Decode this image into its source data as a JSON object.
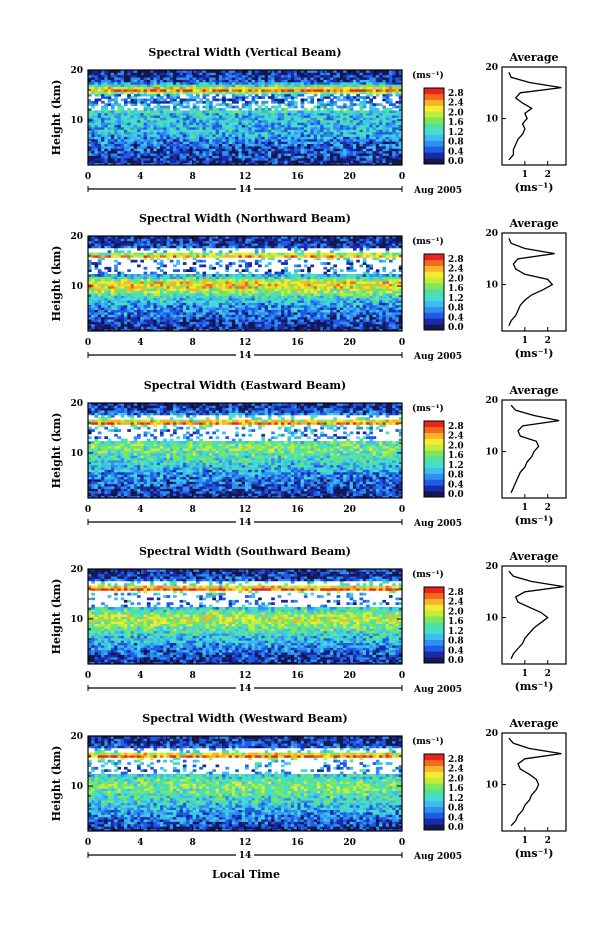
{
  "figure": {
    "xlabel": "Local Time",
    "date_label": "Aug 2005",
    "date_day": "14",
    "ylabel": "Height (km)",
    "cbar_units": "(ms⁻¹)",
    "avg_title": "Average",
    "avg_xlabel": "(ms⁻¹)"
  },
  "chart_data": [
    {
      "type": "heatmap",
      "title": "Spectral Width (Vertical Beam)",
      "xlabel": "Local Time",
      "ylabel": "Height (km)",
      "x_ticks": [
        "0",
        "4",
        "8",
        "12",
        "16",
        "20",
        "0"
      ],
      "y_ticks": [
        "10",
        "20"
      ],
      "xlim": [
        0,
        24
      ],
      "ylim": [
        1,
        20
      ],
      "colorbar": {
        "units": "(ms⁻¹)",
        "ticks": [
          "2.8",
          "2.4",
          "2.0",
          "1.6",
          "1.2",
          "0.8",
          "0.4",
          "0.0"
        ]
      },
      "average_profile": {
        "title": "Average",
        "xlabel": "(ms⁻¹)",
        "x_ticks": [
          "1",
          "2"
        ],
        "y_ticks": [
          "10",
          "20"
        ],
        "xlim": [
          0,
          2.8
        ],
        "heights": [
          2,
          3,
          4,
          5,
          6,
          7,
          8,
          9,
          10,
          11,
          12,
          13,
          14,
          15,
          16,
          17,
          18,
          19
        ],
        "values": [
          0.3,
          0.5,
          0.5,
          0.6,
          0.7,
          0.9,
          1.0,
          0.9,
          1.1,
          1.0,
          1.3,
          0.9,
          0.6,
          0.8,
          2.6,
          1.2,
          0.4,
          0.3
        ]
      }
    },
    {
      "type": "heatmap",
      "title": "Spectral Width (Northward Beam)",
      "xlabel": "Local Time",
      "ylabel": "Height (km)",
      "x_ticks": [
        "0",
        "4",
        "8",
        "12",
        "16",
        "20",
        "0"
      ],
      "y_ticks": [
        "10",
        "20"
      ],
      "xlim": [
        0,
        24
      ],
      "ylim": [
        1,
        20
      ],
      "colorbar": {
        "units": "(ms⁻¹)",
        "ticks": [
          "2.8",
          "2.4",
          "2.0",
          "1.6",
          "1.2",
          "0.8",
          "0.4",
          "0.0"
        ]
      },
      "average_profile": {
        "title": "Average",
        "xlabel": "(ms⁻¹)",
        "x_ticks": [
          "1",
          "2"
        ],
        "y_ticks": [
          "10",
          "20"
        ],
        "xlim": [
          0,
          2.8
        ],
        "heights": [
          2,
          3,
          4,
          5,
          6,
          7,
          8,
          9,
          10,
          11,
          12,
          13,
          14,
          15,
          16,
          17,
          18,
          19
        ],
        "values": [
          0.3,
          0.4,
          0.6,
          0.7,
          0.8,
          1.0,
          1.3,
          1.8,
          2.2,
          2.0,
          1.0,
          0.6,
          0.5,
          0.7,
          2.3,
          1.0,
          0.4,
          0.3
        ]
      }
    },
    {
      "type": "heatmap",
      "title": "Spectral Width (Eastward Beam)",
      "xlabel": "Local Time",
      "ylabel": "Height (km)",
      "x_ticks": [
        "0",
        "4",
        "8",
        "12",
        "16",
        "20",
        "0"
      ],
      "y_ticks": [
        "10",
        "20"
      ],
      "xlim": [
        0,
        24
      ],
      "ylim": [
        1,
        20
      ],
      "colorbar": {
        "units": "(ms⁻¹)",
        "ticks": [
          "2.8",
          "2.4",
          "2.0",
          "1.6",
          "1.2",
          "0.8",
          "0.4",
          "0.0"
        ]
      },
      "average_profile": {
        "title": "Average",
        "xlabel": "(ms⁻¹)",
        "x_ticks": [
          "1",
          "2"
        ],
        "y_ticks": [
          "10",
          "20"
        ],
        "xlim": [
          0,
          2.8
        ],
        "heights": [
          2,
          3,
          4,
          5,
          6,
          7,
          8,
          9,
          10,
          11,
          12,
          13,
          14,
          15,
          16,
          17,
          18,
          19
        ],
        "values": [
          0.4,
          0.5,
          0.6,
          0.7,
          0.8,
          1.0,
          1.1,
          1.3,
          1.4,
          1.6,
          1.5,
          0.8,
          0.7,
          0.9,
          2.5,
          1.4,
          0.6,
          0.4
        ]
      }
    },
    {
      "type": "heatmap",
      "title": "Spectral Width (Southward Beam)",
      "xlabel": "Local Time",
      "ylabel": "Height (km)",
      "x_ticks": [
        "0",
        "4",
        "8",
        "12",
        "16",
        "20",
        "0"
      ],
      "y_ticks": [
        "10",
        "20"
      ],
      "xlim": [
        0,
        24
      ],
      "ylim": [
        1,
        20
      ],
      "colorbar": {
        "units": "(ms⁻¹)",
        "ticks": [
          "2.8",
          "2.4",
          "2.0",
          "1.6",
          "1.2",
          "0.8",
          "0.4",
          "0.0"
        ]
      },
      "average_profile": {
        "title": "Average",
        "xlabel": "(ms⁻¹)",
        "x_ticks": [
          "1",
          "2"
        ],
        "y_ticks": [
          "10",
          "20"
        ],
        "xlim": [
          0,
          2.8
        ],
        "heights": [
          2,
          3,
          4,
          5,
          6,
          7,
          8,
          9,
          10,
          11,
          12,
          13,
          14,
          15,
          16,
          17,
          18,
          19
        ],
        "values": [
          0.4,
          0.5,
          0.7,
          0.9,
          1.0,
          1.2,
          1.4,
          1.7,
          2.0,
          1.7,
          1.2,
          0.7,
          0.6,
          1.0,
          2.7,
          1.3,
          0.5,
          0.3
        ]
      }
    },
    {
      "type": "heatmap",
      "title": "Spectral Width (Westward Beam)",
      "xlabel": "Local Time",
      "ylabel": "Height (km)",
      "x_ticks": [
        "0",
        "4",
        "8",
        "12",
        "16",
        "20",
        "0"
      ],
      "y_ticks": [
        "10",
        "20"
      ],
      "xlim": [
        0,
        24
      ],
      "ylim": [
        1,
        20
      ],
      "colorbar": {
        "units": "(ms⁻¹)",
        "ticks": [
          "2.8",
          "2.4",
          "2.0",
          "1.6",
          "1.2",
          "0.8",
          "0.4",
          "0.0"
        ]
      },
      "average_profile": {
        "title": "Average",
        "xlabel": "(ms⁻¹)",
        "x_ticks": [
          "1",
          "2"
        ],
        "y_ticks": [
          "10",
          "20"
        ],
        "xlim": [
          0,
          2.8
        ],
        "heights": [
          2,
          3,
          4,
          5,
          6,
          7,
          8,
          9,
          10,
          11,
          12,
          13,
          14,
          15,
          16,
          17,
          18,
          19
        ],
        "values": [
          0.4,
          0.6,
          0.7,
          0.9,
          1.0,
          1.2,
          1.3,
          1.5,
          1.6,
          1.5,
          1.2,
          0.8,
          0.7,
          1.0,
          2.6,
          1.2,
          0.5,
          0.3
        ]
      }
    }
  ]
}
